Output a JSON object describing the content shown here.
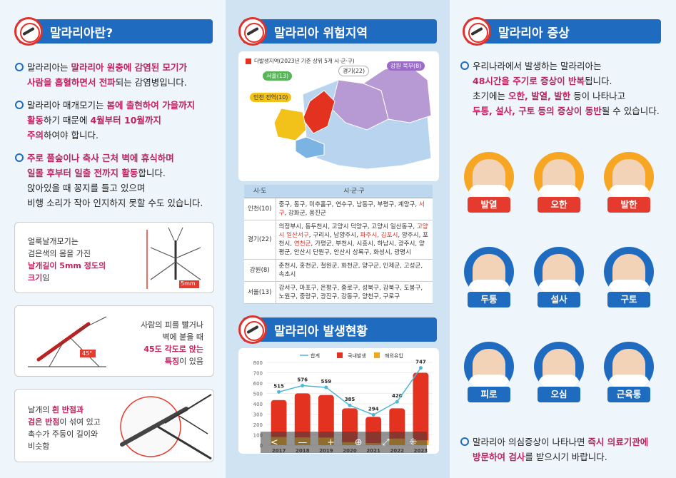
{
  "panel1": {
    "title": "말라리아란?",
    "b1": {
      "t1": "말라리아는 ",
      "h1": "말라리아 원충에 감염된 모기가",
      "h2": "사람을 흡혈하면서 전파",
      "t2": "되는 감염병입니다."
    },
    "b2": {
      "t1": "말라리아 매개모기는 ",
      "h1": "봄에 출현하여 가을까지",
      "h2": "활동",
      "t2": "하기 때문에 ",
      "h3": "4월부터 10월까지",
      "h4": "주의",
      "t3": "하여야 합니다."
    },
    "b3": {
      "h1": "주로 풀숲이나 축사 근처 벽에 휴식하며",
      "h2": "일몰 후부터 일출 전까지 활동",
      "t1": "합니다.",
      "t2": "앉아있을 때 꽁지를 들고 있으며",
      "t3": "비행 소리가 작아 인지하지 못할 수도 있습니다."
    },
    "card1": {
      "l1": "얼룩날개모기는",
      "l2": "검은색의 몸을 가진",
      "h1": "날개길이 5mm 정도의",
      "h2": "크기",
      "t": "임",
      "measure": "5mm"
    },
    "card2": {
      "l1": "사람의 피를 빨거나",
      "l2": "벽에 붙을 때",
      "h1": "45도 각도로 앉는",
      "h2": "특징",
      "t": "이 있음",
      "angle": "45°"
    },
    "card3": {
      "l1": "날개의 ",
      "h1": "흰 반점과",
      "h2": "검은 반점",
      "t1": "이 섞여 있고",
      "l2": "촉수가 주둥이 길이와",
      "l3": "비슷함"
    }
  },
  "panel2": {
    "title": "말라리아 위험지역",
    "legend": "다발생지역(2023년 기준 상위 5개 시·군·구)",
    "regions": [
      "서울(13)",
      "경기(22)",
      "강원 북부(8)",
      "인천 전역(10)"
    ],
    "table": {
      "headers": [
        "시·도",
        "시·군·구"
      ],
      "rows": [
        {
          "name": "인천(10)",
          "a": "중구, 동구, 미추홀구, 연수구, 남동구, 부평구, 계양구,",
          "r": "서구",
          "b": ", 강화군, 옹진군"
        },
        {
          "name": "경기(22)",
          "a": "의정부시, 동두천시, 고양시 덕양구, 고양시 일산동구,",
          "r": "고양시 일산서구",
          "b": ", 구리시, 남양주시, ",
          "r2": "파주시, 김포시",
          "c": ", 양주시, 포천시, ",
          "r3": "연천군",
          "d": ", 가평군, 부천시, 시흥시, 하남시, 광주시, 양평군, 안산시 단원구, 안산시 상록구, 화성시, 광명시"
        },
        {
          "name": "강원(8)",
          "a": "춘천시, 홍천군, 철원군, 화천군, 양구군, 인제군, 고성군, 속초시"
        },
        {
          "name": "서울(13)",
          "a": "강서구, 마포구, 은평구, 종로구, 성북구, 강북구, 도봉구, 노원구, 중랑구, 광진구, 강동구, 양천구, 구로구"
        }
      ]
    },
    "chart_title": "말라리아 발생현황",
    "controls": [
      "<",
      "—",
      "+",
      "⊕",
      "⤢",
      "⁜"
    ]
  },
  "panel3": {
    "title": "말라리아 증상",
    "intro": {
      "t1": "우리나라에서 발생하는 말라리아는",
      "h1": "48시간을 주기로 증상이 반복",
      "t2": "됩니다.",
      "t3": "초기에는 ",
      "h2": "오한, 발열, 발한",
      "t4": " 등이 나타나고",
      "h3": "두통, 설사, 구토 등의 증상이 동반",
      "t5": "될 수 있습니다."
    },
    "symptoms": [
      "발열",
      "오한",
      "발한",
      "두통",
      "설사",
      "구토",
      "피로",
      "오심",
      "근육통"
    ],
    "footer": {
      "t1": "말라리아 의심증상이 나타나면 ",
      "h1": "즉시 의료기관에",
      "h2": "방문하여 검사",
      "t2": "를 받으시기 바랍니다."
    }
  },
  "chart_data": {
    "type": "bar",
    "categories": [
      "2017",
      "2018",
      "2019",
      "2020",
      "2021",
      "2022",
      "2023"
    ],
    "series": [
      {
        "name": "합계",
        "type": "line",
        "values": [
          515,
          576,
          559,
          385,
          294,
          420,
          747
        ]
      },
      {
        "name": "국내발생",
        "type": "bar",
        "values": [
          436,
          501,
          485,
          356,
          274,
          356,
          700
        ]
      },
      {
        "name": "해외유입",
        "type": "bar",
        "values": [
          79,
          75,
          74,
          29,
          20,
          64,
          47
        ]
      }
    ],
    "ylim": [
      0,
      800
    ],
    "yticks": [
      0,
      100,
      200,
      300,
      400,
      500,
      600,
      700,
      800
    ],
    "colors": {
      "합계": "#4fb6d6",
      "국내발생": "#e3321f",
      "해외유입": "#f4a81d"
    }
  }
}
